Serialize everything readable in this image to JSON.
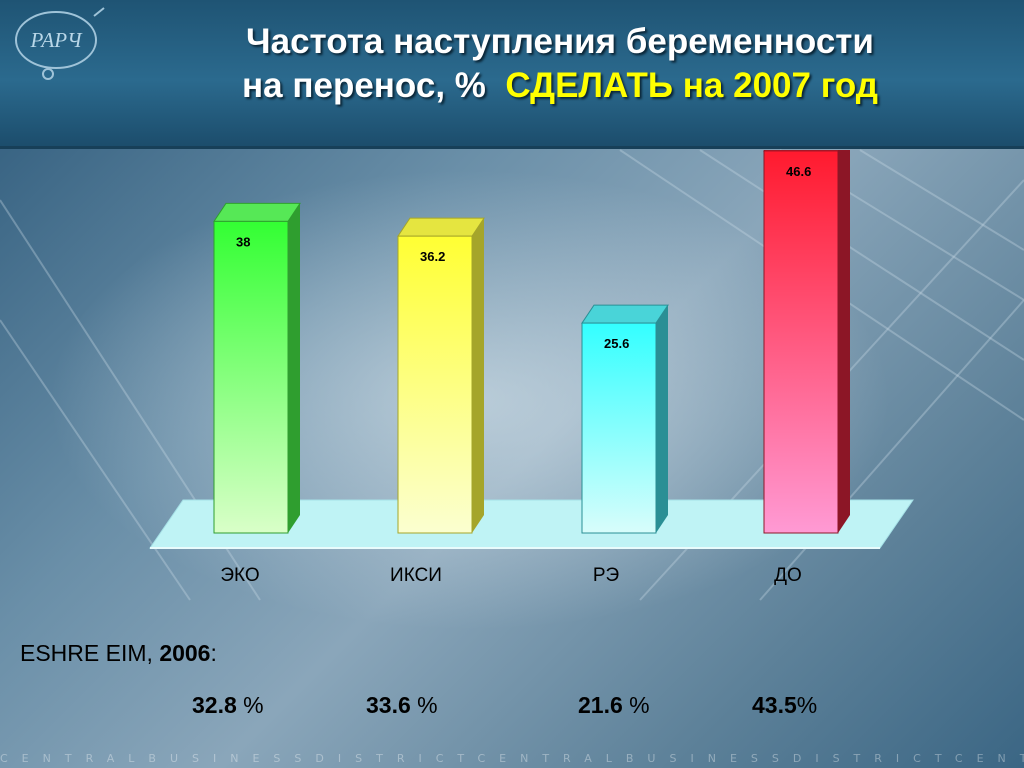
{
  "header": {
    "title_line1": "Частота наступления беременности",
    "title_line2": "на перенос, %",
    "title_accent": "СДЕЛАТЬ на 2007 год",
    "logo_text": "РАРЧ"
  },
  "chart_data": {
    "type": "bar",
    "categories": [
      "ЭКО",
      "ИКСИ",
      "РЭ",
      "ДО"
    ],
    "values": [
      38,
      36.2,
      25.6,
      46.6
    ],
    "data_labels": [
      "38",
      "36.2",
      "25.6",
      "46.6"
    ],
    "colors": [
      "#33ff33",
      "#ffff33",
      "#33ffff",
      "#ff1a2e"
    ],
    "ylim": [
      0,
      50
    ],
    "grid": false
  },
  "reference": {
    "label_prefix": "ESHRE EIM,",
    "label_year": "2006",
    "label_suffix": ":",
    "values": [
      {
        "number": "32.8",
        "unit": " %"
      },
      {
        "number": "33.6",
        "unit": " %"
      },
      {
        "number": "21.6",
        "unit": " %"
      },
      {
        "number": "43.5",
        "unit": "%"
      }
    ]
  },
  "footer_text": "CENTRALBUSINESSDISTRICTCENTRALBUSINESSDISTRICTCENTRA"
}
